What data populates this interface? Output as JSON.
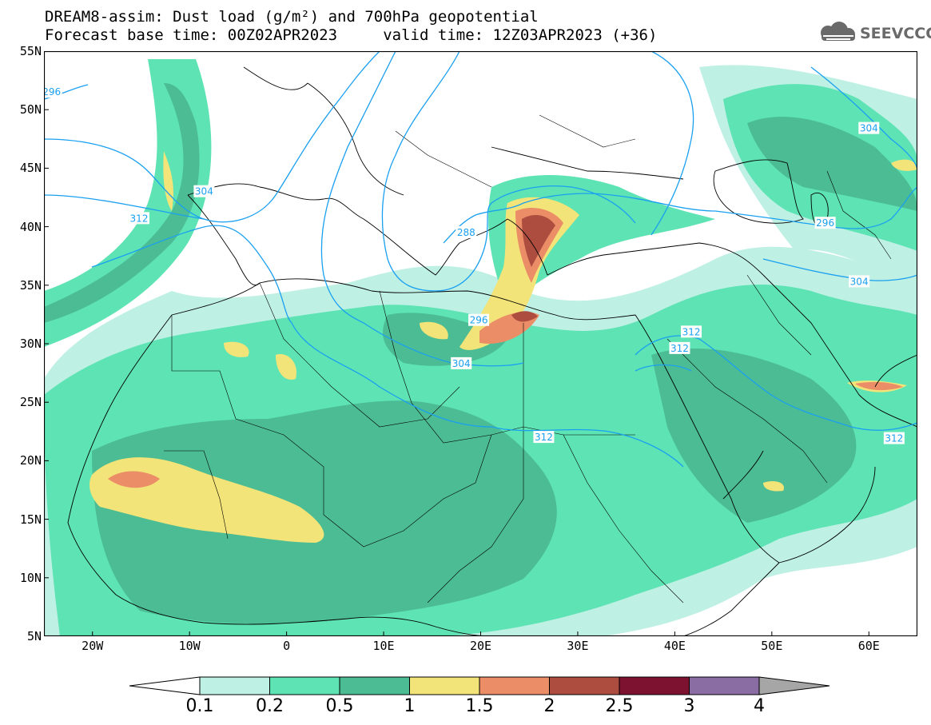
{
  "title": {
    "line1": "DREAM8-assim: Dust load (g/m²) and 700hPa geopotential",
    "line2": "Forecast base time: 00Z02APR2023     valid time: 12Z03APR2023 (+36)"
  },
  "logo": {
    "text": "SEEVCCC",
    "icon": "cloud-icon"
  },
  "map": {
    "lon_range": [
      -25,
      65
    ],
    "lat_range": [
      5,
      55
    ],
    "lat_ticks": [
      {
        "lat": 55,
        "label": "55N"
      },
      {
        "lat": 50,
        "label": "50N"
      },
      {
        "lat": 45,
        "label": "45N"
      },
      {
        "lat": 40,
        "label": "40N"
      },
      {
        "lat": 35,
        "label": "35N"
      },
      {
        "lat": 30,
        "label": "30N"
      },
      {
        "lat": 25,
        "label": "25N"
      },
      {
        "lat": 20,
        "label": "20N"
      },
      {
        "lat": 15,
        "label": "15N"
      },
      {
        "lat": 10,
        "label": "10N"
      },
      {
        "lat": 5,
        "label": "5N"
      }
    ],
    "lon_ticks": [
      {
        "lon": -20,
        "label": "20W"
      },
      {
        "lon": -10,
        "label": "10W"
      },
      {
        "lon": 0,
        "label": "0"
      },
      {
        "lon": 10,
        "label": "10E"
      },
      {
        "lon": 20,
        "label": "20E"
      },
      {
        "lon": 30,
        "label": "30E"
      },
      {
        "lon": 40,
        "label": "40E"
      },
      {
        "lon": 50,
        "label": "50E"
      },
      {
        "lon": 60,
        "label": "60E"
      }
    ],
    "contour_color": "#1aa0f0",
    "contour_labels": [
      {
        "text": "296",
        "lon": -24.2,
        "lat": 51.5
      },
      {
        "text": "304",
        "lon": -8.5,
        "lat": 43.0
      },
      {
        "text": "312",
        "lon": -15.2,
        "lat": 40.7
      },
      {
        "text": "288",
        "lon": 18.5,
        "lat": 39.5
      },
      {
        "text": "296",
        "lon": 19.8,
        "lat": 32.0
      },
      {
        "text": "304",
        "lon": 18.0,
        "lat": 28.3
      },
      {
        "text": "312",
        "lon": 26.5,
        "lat": 22.0
      },
      {
        "text": "312",
        "lon": 41.7,
        "lat": 31.0
      },
      {
        "text": "312",
        "lon": 40.5,
        "lat": 29.6
      },
      {
        "text": "304",
        "lon": 60.0,
        "lat": 48.4
      },
      {
        "text": "296",
        "lon": 55.5,
        "lat": 40.3
      },
      {
        "text": "304",
        "lon": 59.0,
        "lat": 35.3
      },
      {
        "text": "312",
        "lon": 62.6,
        "lat": 21.9
      }
    ]
  },
  "colorbar": {
    "colors": [
      "#ffffff",
      "#bff0e4",
      "#5ee3b4",
      "#4cbc94",
      "#f2e478",
      "#eb8e67",
      "#ac4d3f",
      "#7d1230",
      "#8a6ea3",
      "#a6a6a6"
    ],
    "labels": [
      "0.1",
      "0.2",
      "0.5",
      "1",
      "1.5",
      "2",
      "2.5",
      "3",
      "4"
    ]
  }
}
